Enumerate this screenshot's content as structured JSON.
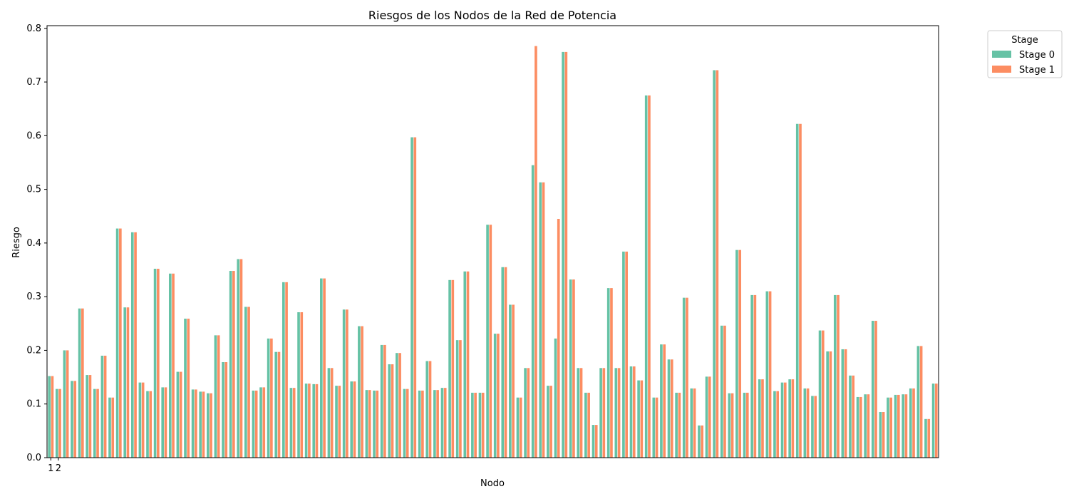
{
  "chart_data": {
    "type": "bar",
    "title": "Riesgos de los Nodos de la Red de Potencia",
    "xlabel": "Nodo",
    "ylabel": "Riesgo",
    "ylim": [
      0,
      0.805
    ],
    "yticks": [
      "0.0",
      "0.1",
      "0.2",
      "0.3",
      "0.4",
      "0.5",
      "0.6",
      "0.7",
      "0.8"
    ],
    "xtick_labels": [
      "1",
      "2"
    ],
    "grid": false,
    "legend": {
      "title": "Stage",
      "placement": "outside-top-right"
    },
    "colors": {
      "Stage 0": "#66c2a5",
      "Stage 1": "#fc8d62"
    },
    "series": [
      {
        "name": "Stage 0",
        "values": [
          0.152,
          0.128,
          0.2,
          0.143,
          0.278,
          0.154,
          0.128,
          0.19,
          0.112,
          0.427,
          0.28,
          0.42,
          0.14,
          0.124,
          0.352,
          0.131,
          0.343,
          0.16,
          0.259,
          0.127,
          0.123,
          0.12,
          0.228,
          0.178,
          0.348,
          0.37,
          0.281,
          0.125,
          0.131,
          0.222,
          0.197,
          0.327,
          0.13,
          0.271,
          0.138,
          0.137,
          0.334,
          0.167,
          0.134,
          0.276,
          0.142,
          0.245,
          0.126,
          0.125,
          0.21,
          0.174,
          0.195,
          0.128,
          0.597,
          0.125,
          0.18,
          0.126,
          0.13,
          0.331,
          0.219,
          0.347,
          0.121,
          0.121,
          0.434,
          0.231,
          0.355,
          0.285,
          0.112,
          0.167,
          0.545,
          0.513,
          0.134,
          0.222,
          0.756,
          0.332,
          0.167,
          0.121,
          0.061,
          0.167,
          0.316,
          0.167,
          0.384,
          0.17,
          0.144,
          0.675,
          0.112,
          0.211,
          0.183,
          0.121,
          0.298,
          0.129,
          0.06,
          0.151,
          0.722,
          0.246,
          0.12,
          0.387,
          0.121,
          0.303,
          0.146,
          0.31,
          0.124,
          0.14,
          0.146,
          0.622,
          0.129,
          0.115,
          0.237,
          0.198,
          0.303,
          0.202,
          0.153,
          0.113,
          0.118,
          0.255,
          0.085,
          0.112,
          0.117,
          0.118,
          0.129,
          0.208,
          0.072,
          0.138
        ]
      },
      {
        "name": "Stage 1",
        "values": [
          0.152,
          0.128,
          0.2,
          0.143,
          0.278,
          0.154,
          0.128,
          0.19,
          0.112,
          0.427,
          0.28,
          0.42,
          0.14,
          0.124,
          0.352,
          0.131,
          0.343,
          0.16,
          0.259,
          0.127,
          0.123,
          0.12,
          0.228,
          0.178,
          0.348,
          0.37,
          0.281,
          0.125,
          0.131,
          0.222,
          0.197,
          0.327,
          0.13,
          0.271,
          0.138,
          0.137,
          0.334,
          0.167,
          0.134,
          0.276,
          0.142,
          0.245,
          0.126,
          0.125,
          0.21,
          0.174,
          0.195,
          0.128,
          0.597,
          0.125,
          0.18,
          0.126,
          0.13,
          0.331,
          0.219,
          0.347,
          0.121,
          0.121,
          0.434,
          0.231,
          0.355,
          0.285,
          0.112,
          0.167,
          0.767,
          0.513,
          0.134,
          0.445,
          0.756,
          0.332,
          0.167,
          0.121,
          0.061,
          0.167,
          0.316,
          0.167,
          0.384,
          0.17,
          0.144,
          0.675,
          0.112,
          0.211,
          0.183,
          0.121,
          0.298,
          0.129,
          0.06,
          0.151,
          0.722,
          0.246,
          0.12,
          0.387,
          0.121,
          0.303,
          0.146,
          0.31,
          0.124,
          0.14,
          0.146,
          0.622,
          0.129,
          0.115,
          0.237,
          0.198,
          0.303,
          0.202,
          0.153,
          0.113,
          0.118,
          0.255,
          0.085,
          0.112,
          0.117,
          0.118,
          0.129,
          0.208,
          0.072,
          0.138
        ]
      }
    ]
  }
}
